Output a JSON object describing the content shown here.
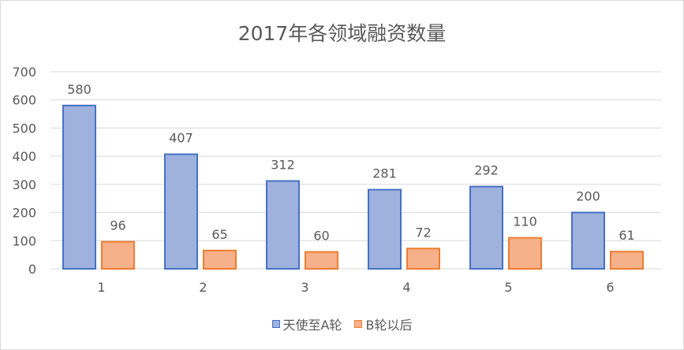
{
  "chart_data": {
    "type": "bar",
    "title": "2017年各领域融资数量",
    "xlabel": "",
    "ylabel": "",
    "categories": [
      "1",
      "2",
      "3",
      "4",
      "5",
      "6"
    ],
    "ylim": [
      0,
      700
    ],
    "yticks": [
      "0",
      "100",
      "200",
      "300",
      "400",
      "500",
      "600",
      "700"
    ],
    "grid": true,
    "legend_position": "bottom",
    "series": [
      {
        "name": "天使至A轮",
        "values": [
          580,
          407,
          312,
          281,
          292,
          200
        ],
        "color": "#4472c4",
        "fill": "#9fb1dd"
      },
      {
        "name": "B轮以后",
        "values": [
          96,
          65,
          60,
          72,
          110,
          61
        ],
        "color": "#ed7d31",
        "fill": "#f6b08a"
      }
    ]
  }
}
